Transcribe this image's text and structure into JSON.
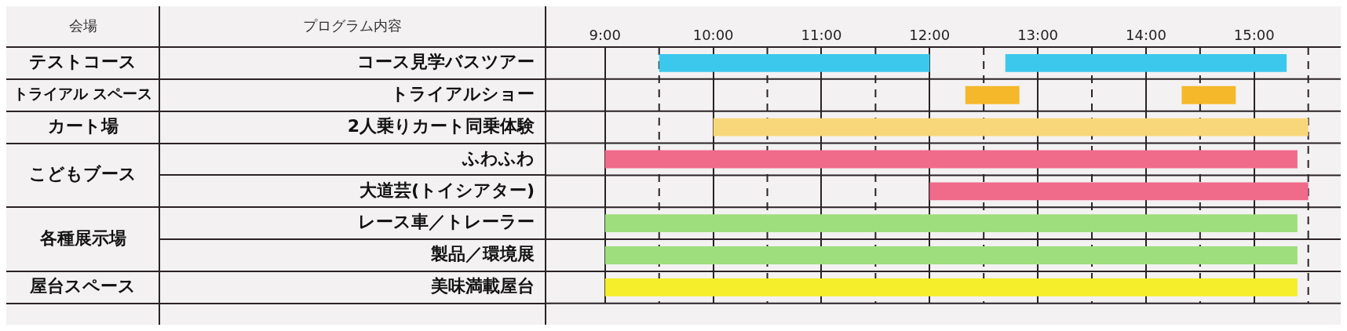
{
  "chart_data": {
    "type": "bar",
    "orientation": "horizontal",
    "categories": [
      "コース見学バスツアー",
      "トライアルショー",
      "2人乗りカート同乗体験",
      "ふわふわ",
      "大道芸(トイシアター)",
      "レース車／トレーラー",
      "製品／環境展",
      "美味満載屋台"
    ],
    "series": [
      {
        "base": [
          9.5,
          12.33,
          10,
          9,
          12,
          9,
          9,
          9
        ],
        "values": [
          2.5,
          0.5,
          5.5,
          6.4,
          3.5,
          6.4,
          6.4,
          6.4
        ],
        "colors": [
          "#3cc8ec",
          "#f5b82a",
          "#f8d77a",
          "#f06a8a",
          "#f06a8a",
          "#9ede7c",
          "#9ede7c",
          "#f5ee2a"
        ]
      },
      {
        "base": [
          12.7,
          14.33,
          null,
          null,
          null,
          null,
          null,
          null
        ],
        "values": [
          2.6,
          0.5,
          null,
          null,
          null,
          null,
          null,
          null
        ],
        "colors": [
          "#3cc8ec",
          "#f5b82a",
          "#f8d77a",
          "#f06a8a",
          "#f06a8a",
          "#9ede7c",
          "#9ede7c",
          "#f5ee2a"
        ]
      }
    ],
    "xlim": [
      8.45,
      15.8
    ],
    "xticks": [
      {
        "value": 9,
        "label": "9:00"
      },
      {
        "value": 10,
        "label": "10:00"
      },
      {
        "value": 11,
        "label": "11:00"
      },
      {
        "value": 12,
        "label": "12:00"
      },
      {
        "value": 13,
        "label": "13:00"
      },
      {
        "value": 14,
        "label": "14:00"
      },
      {
        "value": 15,
        "label": "15:00"
      }
    ],
    "grid": "x",
    "ref_lines": [
      {
        "axis": "x",
        "value": 9.5,
        "line_style": "dashed"
      },
      {
        "axis": "x",
        "value": 10.5,
        "line_style": "dashed"
      },
      {
        "axis": "x",
        "value": 11.5,
        "line_style": "dashed"
      },
      {
        "axis": "x",
        "value": 12.5,
        "line_style": "dashed"
      },
      {
        "axis": "x",
        "value": 13.5,
        "line_style": "dashed"
      },
      {
        "axis": "x",
        "value": 14.5,
        "line_style": "dashed"
      },
      {
        "axis": "x",
        "value": 15.5,
        "line_style": "dashed"
      }
    ],
    "annotations": [
      "会場",
      "プログラム内容",
      "テストコース",
      "トライアル スペース",
      "カート場",
      "こどもブース",
      "各種展示場",
      "屋台スペース"
    ]
  }
}
